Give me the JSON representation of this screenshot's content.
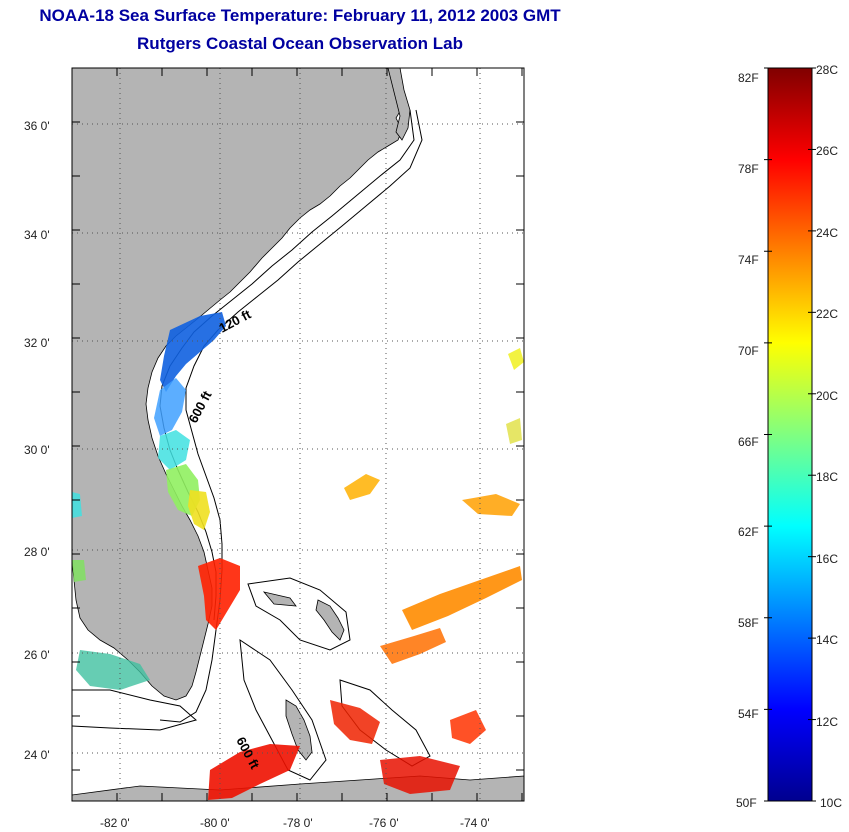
{
  "header": {
    "title": "NOAA-18 Sea Surface Temperature:  February 11, 2012 2003 GMT",
    "subtitle": "Rutgers Coastal Ocean Observation Lab"
  },
  "map": {
    "lat_labels": [
      "36 0'",
      "34 0'",
      "32 0'",
      "30 0'",
      "28 0'",
      "26 0'",
      "24 0'"
    ],
    "lon_labels": [
      "-82 0'",
      "-80 0'",
      "-78 0'",
      "-76 0'",
      "-74 0'"
    ],
    "contour_labels": [
      "120 ft",
      "600 ft",
      "600 ft"
    ]
  },
  "colorbar": {
    "fahrenheit_labels": [
      "82F",
      "78F",
      "74F",
      "70F",
      "66F",
      "62F",
      "58F",
      "54F",
      "50F"
    ],
    "celsius_labels": [
      "28C",
      "26C",
      "24C",
      "22C",
      "20C",
      "18C",
      "16C",
      "14C",
      "12C",
      "10C"
    ],
    "colors": [
      "#00008f",
      "#0000ff",
      "#0080ff",
      "#00ffff",
      "#80ff80",
      "#ffff00",
      "#ff8000",
      "#ff0000",
      "#800000"
    ]
  },
  "colors": {
    "title": "#0000a0",
    "land": "#b4b4b4"
  }
}
